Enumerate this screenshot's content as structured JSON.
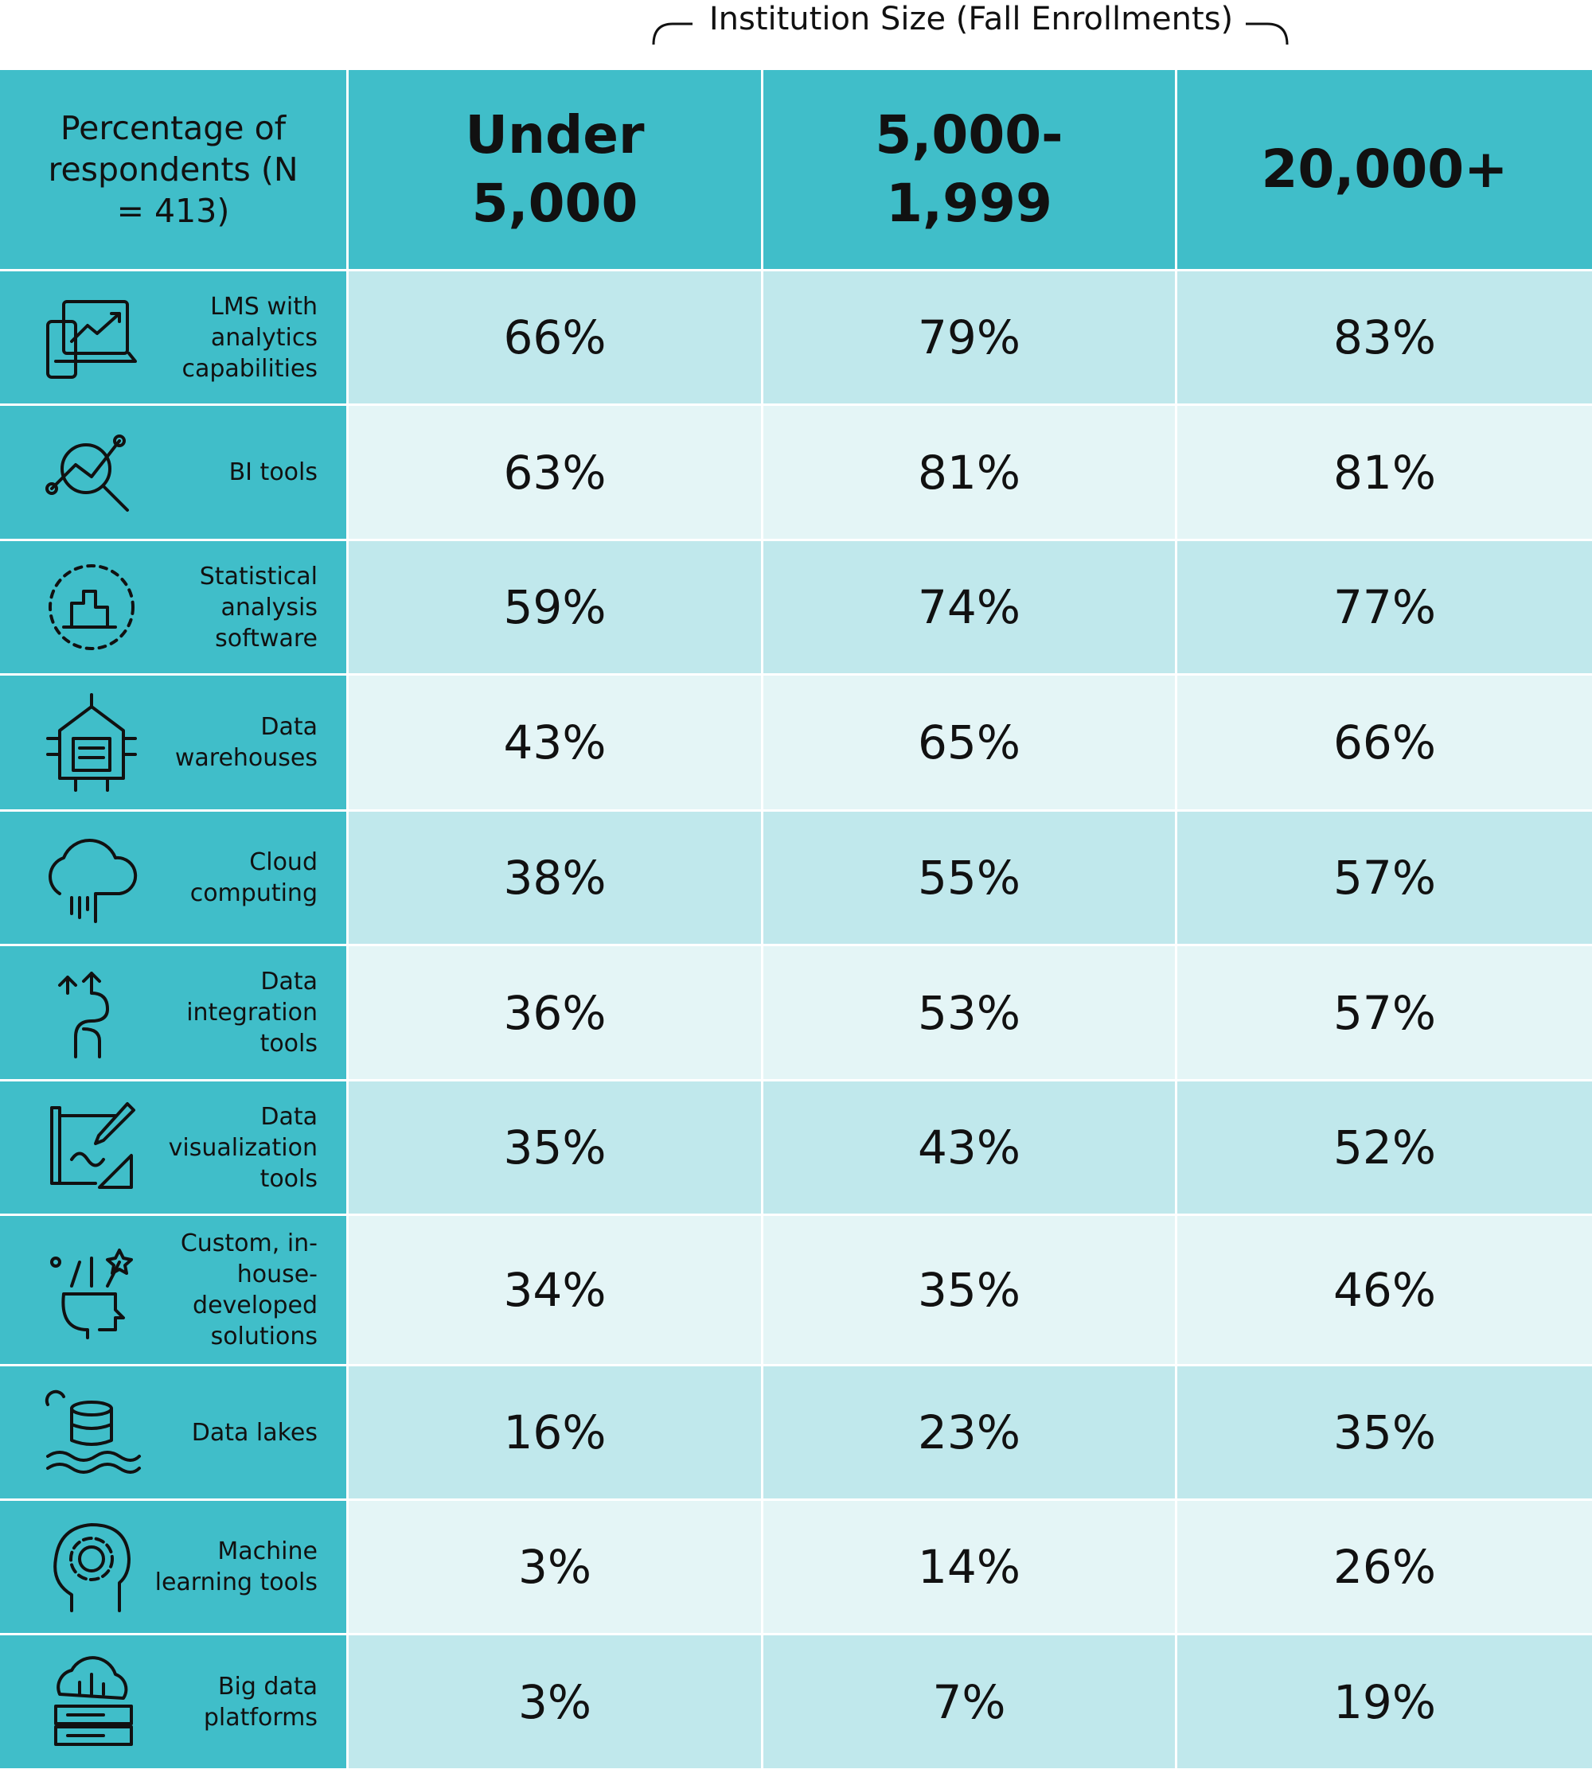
{
  "caption": "Institution Size (Fall Enrollments)",
  "table": {
    "header": [
      "Percentage of respondents (N = 413)",
      "Under 5,000",
      "5,000-1,999",
      "20,000+"
    ],
    "rows": [
      [
        "LMS with analytics capabilities",
        "66%",
        "79%",
        "83%"
      ],
      [
        "BI tools",
        "63%",
        "81%",
        "81%"
      ],
      [
        "Statistical analysis software",
        "59%",
        "74%",
        "77%"
      ],
      [
        "Data warehouses",
        "43%",
        "65%",
        "66%"
      ],
      [
        "Cloud computing",
        "38%",
        "55%",
        "57%"
      ],
      [
        "Data integration tools",
        "36%",
        "53%",
        "57%"
      ],
      [
        "Data visualization tools",
        "35%",
        "43%",
        "52%"
      ],
      [
        "Custom, in-house-developed solutions",
        "34%",
        "35%",
        "46%"
      ],
      [
        "Data lakes",
        "16%",
        "23%",
        "35%"
      ],
      [
        "Machine learning tools",
        "3%",
        "14%",
        "26%"
      ],
      [
        "Big data platforms",
        "3%",
        "7%",
        "19%"
      ]
    ]
  }
}
